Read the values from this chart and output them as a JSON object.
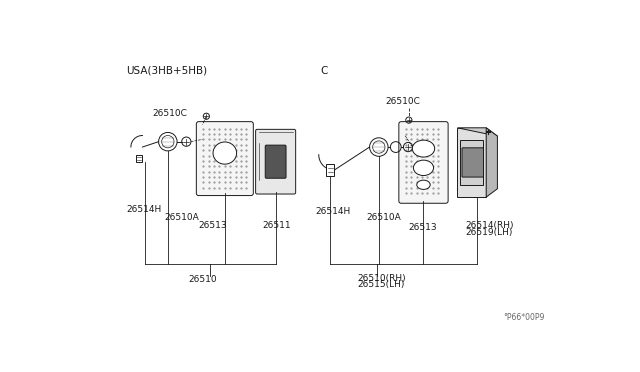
{
  "bg_color": "#ffffff",
  "title_left": "USA(3HB+5HB)",
  "title_right": "C",
  "watermark": "°P66*00P9",
  "left_labels": {
    "26510C": "26510C",
    "26514H": "26514H",
    "26510A": "26510A",
    "26513": "26513",
    "26511": "26511",
    "26510": "26510"
  },
  "right_labels": {
    "26510C": "26510C",
    "26514H": "26514H",
    "26510A": "26510A",
    "26513": "26513",
    "26514RH": "26514(RH)",
    "26519LH": "26519(LH)",
    "26510RH": "26510(RH)",
    "26515LH": "26515(LH)"
  },
  "lc": "#1a1a1a",
  "tc": "#1a1a1a",
  "fs": 6.5,
  "tfs": 7.5
}
